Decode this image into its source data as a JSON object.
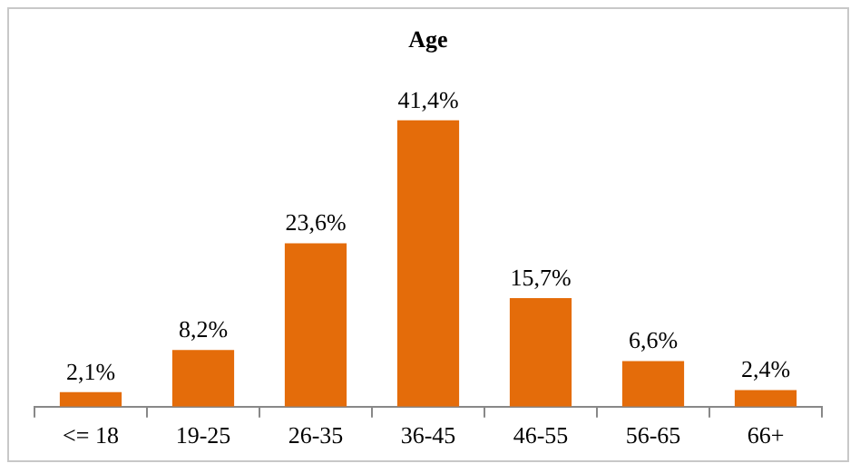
{
  "chart_data": {
    "type": "bar",
    "title": "Age",
    "categories": [
      "<= 18",
      "19-25",
      "26-35",
      "36-45",
      "46-55",
      "56-65",
      "66+"
    ],
    "values": [
      2.1,
      8.2,
      23.6,
      41.4,
      15.7,
      6.6,
      2.4
    ],
    "value_labels": [
      "2,1%",
      "8,2%",
      "23,6%",
      "41,4%",
      "15,7%",
      "6,6%",
      "2,4%"
    ],
    "color": "#e46c0a",
    "grid": false,
    "legend": false
  }
}
